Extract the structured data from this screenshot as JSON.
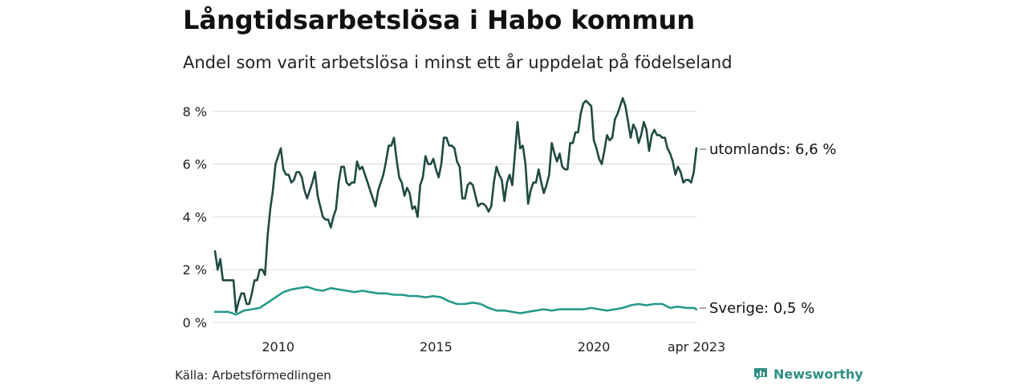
{
  "header": {
    "title": "Långtidsarbetslösa i Habo kommun",
    "subtitle": "Andel som varit arbetslösa i minst ett år uppdelat på födelseland"
  },
  "footer": {
    "source": "Källa: Arbetsförmedlingen",
    "brand": "Newsworthy",
    "brand_icon": "newsworthy-logo-icon"
  },
  "colors": {
    "utomlands": "#1f4a42",
    "sverige": "#26998b",
    "grid": "#d9d9d9",
    "brand": "#2f8f83"
  },
  "chart_data": {
    "type": "line",
    "title": "Långtidsarbetslösa i Habo kommun",
    "subtitle": "Andel som varit arbetslösa i minst ett år uppdelat på födelseland",
    "xlabel": "",
    "ylabel": "",
    "x_start": "2008-01",
    "x_end": "2023-04",
    "x_tick_labels": [
      "2010",
      "2015",
      "2020",
      "apr 2023"
    ],
    "y_ticks": [
      0,
      2,
      4,
      6,
      8
    ],
    "y_tick_labels": [
      "0 %",
      "2 %",
      "4 %",
      "6 %",
      "8 %"
    ],
    "ylim": [
      0,
      8.6
    ],
    "grid": true,
    "end_labels": [
      "utomlands: 6,6 %",
      "Sverige: 0,5 %"
    ],
    "series": [
      {
        "key": "utomlands",
        "points": [
          [
            "2008-01",
            2.7
          ],
          [
            "2008-02",
            2.0
          ],
          [
            "2008-03",
            2.4
          ],
          [
            "2008-04",
            1.6
          ],
          [
            "2008-06",
            1.6
          ],
          [
            "2008-08",
            1.6
          ],
          [
            "2008-09",
            0.4
          ],
          [
            "2008-10",
            0.8
          ],
          [
            "2008-11",
            1.1
          ],
          [
            "2008-12",
            1.1
          ],
          [
            "2009-01",
            0.7
          ],
          [
            "2009-02",
            0.7
          ],
          [
            "2009-03",
            1.1
          ],
          [
            "2009-04",
            1.6
          ],
          [
            "2009-05",
            1.6
          ],
          [
            "2009-06",
            2.0
          ],
          [
            "2009-07",
            2.0
          ],
          [
            "2009-08",
            1.8
          ],
          [
            "2009-09",
            3.3
          ],
          [
            "2009-10",
            4.3
          ],
          [
            "2009-11",
            5.0
          ],
          [
            "2009-12",
            6.0
          ],
          [
            "2010-01",
            6.3
          ],
          [
            "2010-02",
            6.6
          ],
          [
            "2010-03",
            5.8
          ],
          [
            "2010-04",
            5.6
          ],
          [
            "2010-05",
            5.6
          ],
          [
            "2010-06",
            5.3
          ],
          [
            "2010-07",
            5.4
          ],
          [
            "2010-08",
            5.7
          ],
          [
            "2010-09",
            5.7
          ],
          [
            "2010-10",
            5.5
          ],
          [
            "2010-11",
            5.0
          ],
          [
            "2010-12",
            4.7
          ],
          [
            "2011-01",
            5.0
          ],
          [
            "2011-02",
            5.3
          ],
          [
            "2011-03",
            5.7
          ],
          [
            "2011-04",
            4.8
          ],
          [
            "2011-05",
            4.4
          ],
          [
            "2011-06",
            4.0
          ],
          [
            "2011-07",
            3.9
          ],
          [
            "2011-08",
            3.9
          ],
          [
            "2011-09",
            3.6
          ],
          [
            "2011-10",
            4.0
          ],
          [
            "2011-11",
            4.3
          ],
          [
            "2011-12",
            5.3
          ],
          [
            "2012-01",
            5.9
          ],
          [
            "2012-02",
            5.9
          ],
          [
            "2012-03",
            5.3
          ],
          [
            "2012-04",
            5.2
          ],
          [
            "2012-05",
            5.3
          ],
          [
            "2012-06",
            5.3
          ],
          [
            "2012-07",
            6.1
          ],
          [
            "2012-08",
            5.8
          ],
          [
            "2012-09",
            5.9
          ],
          [
            "2012-10",
            5.6
          ],
          [
            "2012-11",
            5.3
          ],
          [
            "2012-12",
            5.0
          ],
          [
            "2013-01",
            4.7
          ],
          [
            "2013-02",
            4.4
          ],
          [
            "2013-03",
            5.0
          ],
          [
            "2013-04",
            5.3
          ],
          [
            "2013-05",
            5.6
          ],
          [
            "2013-06",
            6.1
          ],
          [
            "2013-07",
            6.7
          ],
          [
            "2013-08",
            6.7
          ],
          [
            "2013-09",
            7.0
          ],
          [
            "2013-10",
            6.2
          ],
          [
            "2013-11",
            5.5
          ],
          [
            "2013-12",
            5.3
          ],
          [
            "2014-01",
            4.8
          ],
          [
            "2014-02",
            5.1
          ],
          [
            "2014-03",
            4.9
          ],
          [
            "2014-04",
            4.3
          ],
          [
            "2014-05",
            4.4
          ],
          [
            "2014-06",
            4.0
          ],
          [
            "2014-07",
            5.2
          ],
          [
            "2014-08",
            5.5
          ],
          [
            "2014-09",
            6.3
          ],
          [
            "2014-10",
            6.0
          ],
          [
            "2014-11",
            6.0
          ],
          [
            "2014-12",
            6.2
          ],
          [
            "2015-01",
            5.8
          ],
          [
            "2015-02",
            5.5
          ],
          [
            "2015-03",
            6.0
          ],
          [
            "2015-04",
            7.0
          ],
          [
            "2015-05",
            7.0
          ],
          [
            "2015-06",
            6.7
          ],
          [
            "2015-07",
            6.7
          ],
          [
            "2015-08",
            6.6
          ],
          [
            "2015-09",
            6.1
          ],
          [
            "2015-10",
            5.9
          ],
          [
            "2015-11",
            4.7
          ],
          [
            "2015-12",
            4.7
          ],
          [
            "2016-01",
            5.2
          ],
          [
            "2016-02",
            5.3
          ],
          [
            "2016-03",
            5.2
          ],
          [
            "2016-04",
            4.8
          ],
          [
            "2016-05",
            4.4
          ],
          [
            "2016-06",
            4.5
          ],
          [
            "2016-07",
            4.5
          ],
          [
            "2016-08",
            4.4
          ],
          [
            "2016-09",
            4.2
          ],
          [
            "2016-10",
            4.4
          ],
          [
            "2016-11",
            5.3
          ],
          [
            "2016-12",
            5.9
          ],
          [
            "2017-01",
            5.6
          ],
          [
            "2017-02",
            5.4
          ],
          [
            "2017-03",
            4.6
          ],
          [
            "2017-04",
            5.3
          ],
          [
            "2017-05",
            5.6
          ],
          [
            "2017-06",
            5.2
          ],
          [
            "2017-07",
            6.4
          ],
          [
            "2017-08",
            7.6
          ],
          [
            "2017-09",
            6.6
          ],
          [
            "2017-10",
            6.7
          ],
          [
            "2017-11",
            6.0
          ],
          [
            "2017-12",
            4.5
          ],
          [
            "2018-01",
            5.0
          ],
          [
            "2018-02",
            5.3
          ],
          [
            "2018-03",
            5.3
          ],
          [
            "2018-04",
            5.8
          ],
          [
            "2018-05",
            5.3
          ],
          [
            "2018-06",
            4.9
          ],
          [
            "2018-07",
            5.2
          ],
          [
            "2018-08",
            5.6
          ],
          [
            "2018-09",
            6.8
          ],
          [
            "2018-10",
            6.4
          ],
          [
            "2018-11",
            6.1
          ],
          [
            "2018-12",
            6.4
          ],
          [
            "2019-01",
            5.9
          ],
          [
            "2019-02",
            5.8
          ],
          [
            "2019-03",
            5.8
          ],
          [
            "2019-04",
            6.8
          ],
          [
            "2019-05",
            6.8
          ],
          [
            "2019-06",
            7.2
          ],
          [
            "2019-07",
            7.2
          ],
          [
            "2019-08",
            7.9
          ],
          [
            "2019-09",
            8.3
          ],
          [
            "2019-10",
            8.4
          ],
          [
            "2019-11",
            8.3
          ],
          [
            "2019-12",
            8.2
          ],
          [
            "2020-01",
            6.9
          ],
          [
            "2020-02",
            6.6
          ],
          [
            "2020-03",
            6.2
          ],
          [
            "2020-04",
            6.0
          ],
          [
            "2020-05",
            6.5
          ],
          [
            "2020-06",
            7.1
          ],
          [
            "2020-07",
            6.9
          ],
          [
            "2020-08",
            7.0
          ],
          [
            "2020-09",
            7.7
          ],
          [
            "2020-10",
            7.9
          ],
          [
            "2020-11",
            8.2
          ],
          [
            "2020-12",
            8.5
          ],
          [
            "2021-01",
            8.2
          ],
          [
            "2021-02",
            7.6
          ],
          [
            "2021-03",
            7.0
          ],
          [
            "2021-04",
            7.5
          ],
          [
            "2021-05",
            7.3
          ],
          [
            "2021-06",
            6.8
          ],
          [
            "2021-07",
            7.1
          ],
          [
            "2021-08",
            7.6
          ],
          [
            "2021-09",
            7.3
          ],
          [
            "2021-10",
            6.5
          ],
          [
            "2021-11",
            7.1
          ],
          [
            "2021-12",
            7.3
          ],
          [
            "2022-01",
            7.1
          ],
          [
            "2022-02",
            7.1
          ],
          [
            "2022-03",
            7.0
          ],
          [
            "2022-04",
            7.0
          ],
          [
            "2022-05",
            6.6
          ],
          [
            "2022-06",
            6.4
          ],
          [
            "2022-07",
            6.1
          ],
          [
            "2022-08",
            5.6
          ],
          [
            "2022-09",
            5.9
          ],
          [
            "2022-10",
            5.7
          ],
          [
            "2022-11",
            5.3
          ],
          [
            "2022-12",
            5.4
          ],
          [
            "2023-01",
            5.4
          ],
          [
            "2023-02",
            5.3
          ],
          [
            "2023-03",
            5.7
          ],
          [
            "2023-04",
            6.6
          ]
        ]
      },
      {
        "key": "sverige",
        "points": [
          [
            "2008-01",
            0.4
          ],
          [
            "2008-06",
            0.4
          ],
          [
            "2008-09",
            0.3
          ],
          [
            "2008-12",
            0.45
          ],
          [
            "2009-03",
            0.5
          ],
          [
            "2009-06",
            0.55
          ],
          [
            "2009-09",
            0.75
          ],
          [
            "2009-12",
            0.95
          ],
          [
            "2010-03",
            1.15
          ],
          [
            "2010-06",
            1.25
          ],
          [
            "2010-09",
            1.3
          ],
          [
            "2010-12",
            1.35
          ],
          [
            "2011-03",
            1.25
          ],
          [
            "2011-06",
            1.2
          ],
          [
            "2011-09",
            1.3
          ],
          [
            "2011-12",
            1.25
          ],
          [
            "2012-03",
            1.2
          ],
          [
            "2012-06",
            1.15
          ],
          [
            "2012-09",
            1.2
          ],
          [
            "2012-12",
            1.15
          ],
          [
            "2013-03",
            1.1
          ],
          [
            "2013-06",
            1.1
          ],
          [
            "2013-09",
            1.05
          ],
          [
            "2013-12",
            1.05
          ],
          [
            "2014-03",
            1.0
          ],
          [
            "2014-06",
            1.0
          ],
          [
            "2014-09",
            0.95
          ],
          [
            "2014-12",
            1.0
          ],
          [
            "2015-03",
            0.95
          ],
          [
            "2015-06",
            0.8
          ],
          [
            "2015-09",
            0.7
          ],
          [
            "2015-12",
            0.7
          ],
          [
            "2016-03",
            0.75
          ],
          [
            "2016-06",
            0.7
          ],
          [
            "2016-09",
            0.55
          ],
          [
            "2016-12",
            0.45
          ],
          [
            "2017-03",
            0.45
          ],
          [
            "2017-06",
            0.4
          ],
          [
            "2017-09",
            0.35
          ],
          [
            "2017-12",
            0.4
          ],
          [
            "2018-03",
            0.45
          ],
          [
            "2018-06",
            0.5
          ],
          [
            "2018-09",
            0.45
          ],
          [
            "2018-12",
            0.5
          ],
          [
            "2019-03",
            0.5
          ],
          [
            "2019-06",
            0.5
          ],
          [
            "2019-09",
            0.5
          ],
          [
            "2019-12",
            0.55
          ],
          [
            "2020-03",
            0.5
          ],
          [
            "2020-06",
            0.45
          ],
          [
            "2020-09",
            0.5
          ],
          [
            "2020-12",
            0.55
          ],
          [
            "2021-03",
            0.65
          ],
          [
            "2021-06",
            0.7
          ],
          [
            "2021-09",
            0.65
          ],
          [
            "2021-12",
            0.7
          ],
          [
            "2022-03",
            0.7
          ],
          [
            "2022-06",
            0.55
          ],
          [
            "2022-09",
            0.6
          ],
          [
            "2022-12",
            0.55
          ],
          [
            "2023-03",
            0.55
          ],
          [
            "2023-04",
            0.5
          ]
        ]
      }
    ]
  }
}
